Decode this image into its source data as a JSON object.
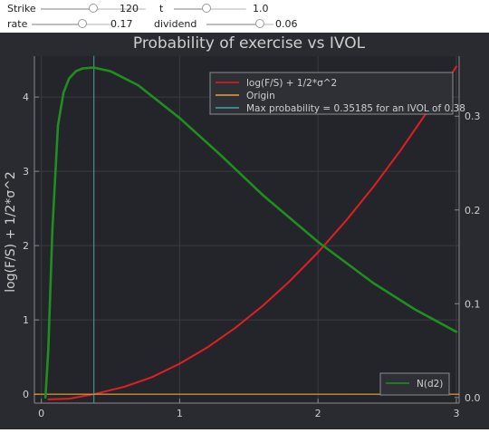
{
  "controls": [
    {
      "label": "Strike",
      "value": "120",
      "fraction": 0.5
    },
    {
      "label": "t",
      "value": "1.0",
      "fraction": 0.45
    },
    {
      "label": "rate",
      "value": "0.17",
      "fraction": 0.62
    },
    {
      "label": "dividend",
      "value": "0.06",
      "fraction": 0.8
    }
  ],
  "colors": {
    "background": "#2a2b30",
    "plot_bg": "#24252a",
    "text": "#cfcfcf",
    "red": "#e02020",
    "orange": "#e8a13a",
    "teal": "#4aa3a0",
    "green": "#1f8f1f"
  },
  "chart_data": {
    "type": "line",
    "title": "Probability of exercise vs IVOL",
    "ylabel": "log(F/S) + 1/2*σ^2",
    "xlabel": "",
    "xlim": [
      -0.05,
      3.02
    ],
    "ylim": [
      -0.12,
      4.55
    ],
    "y2lim": [
      -0.006,
      0.364
    ],
    "xticks": [
      "0",
      "1",
      "2",
      "3"
    ],
    "yticks": [
      "0",
      "1",
      "2",
      "3",
      "4"
    ],
    "y2ticks": [
      "0.0",
      "0.1",
      "0.2",
      "0.3"
    ],
    "grid": true,
    "series": [
      {
        "name": "log(F/S) + 1/2*σ^2",
        "axis": "left",
        "color": "red",
        "x": [
          0.05,
          0.2,
          0.38,
          0.6,
          0.8,
          1.0,
          1.2,
          1.4,
          1.6,
          1.8,
          2.0,
          2.2,
          2.4,
          2.6,
          2.8,
          3.0
        ],
        "y": [
          -0.07,
          -0.06,
          0.0,
          0.1,
          0.23,
          0.41,
          0.63,
          0.89,
          1.19,
          1.53,
          1.91,
          2.33,
          2.79,
          3.29,
          3.83,
          4.41
        ]
      },
      {
        "name": "Origin",
        "axis": "left",
        "color": "orange",
        "x": [
          -0.05,
          3.02
        ],
        "y": [
          0,
          0
        ]
      },
      {
        "name": "Max probability = 0.35185  for an IVOL of 0.38",
        "axis": "left",
        "color": "teal",
        "x": [
          0.38,
          0.38
        ],
        "y": [
          -0.12,
          4.55
        ]
      },
      {
        "name": "N(d2)",
        "axis": "right",
        "color": "green",
        "x": [
          0.03,
          0.05,
          0.08,
          0.12,
          0.16,
          0.2,
          0.25,
          0.3,
          0.38,
          0.5,
          0.7,
          1.0,
          1.3,
          1.6,
          2.0,
          2.4,
          2.7,
          3.0
        ],
        "y": [
          0.0,
          0.05,
          0.18,
          0.29,
          0.325,
          0.34,
          0.348,
          0.351,
          0.35185,
          0.348,
          0.333,
          0.298,
          0.258,
          0.216,
          0.166,
          0.122,
          0.094,
          0.07
        ]
      }
    ],
    "legend_top": {
      "placement": "top-right",
      "entries": [
        0,
        1,
        2
      ]
    },
    "legend_bottom": {
      "placement": "bottom-right",
      "entries": [
        3
      ]
    }
  }
}
